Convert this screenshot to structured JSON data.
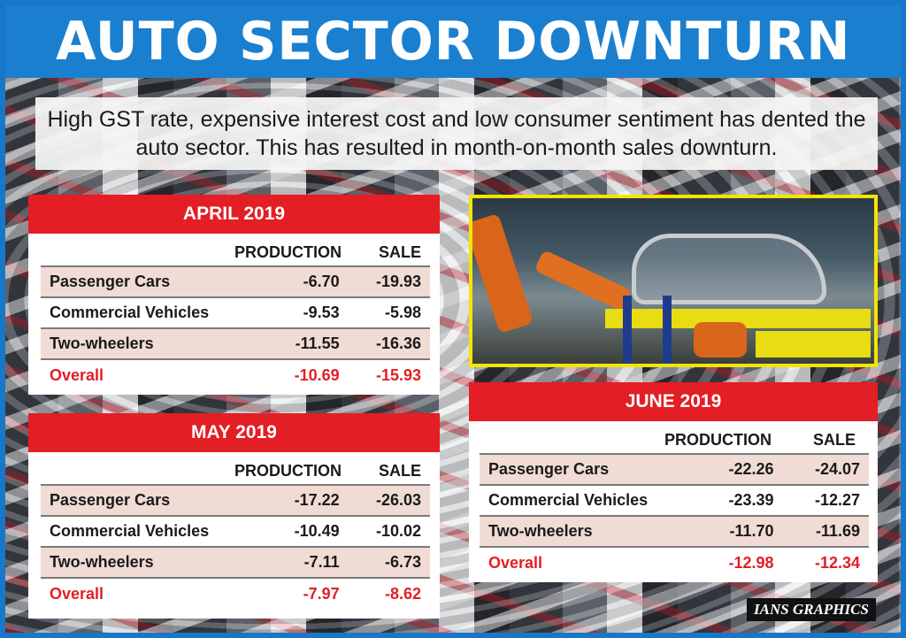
{
  "title": "AUTO SECTOR DOWNTURN",
  "intro": "High GST rate, expensive interest cost and low consumer sentiment has dented the auto sector. This has resulted in month-on-month sales downturn.",
  "columns": {
    "production": "PRODUCTION",
    "sale": "SALE"
  },
  "tables": {
    "april": {
      "heading": "APRIL 2019",
      "rows": [
        {
          "label": "Passenger Cars",
          "production": "-6.70",
          "sale": "-19.93"
        },
        {
          "label": "Commercial Vehicles",
          "production": "-9.53",
          "sale": "-5.98"
        },
        {
          "label": "Two-wheelers",
          "production": "-11.55",
          "sale": "-16.36"
        },
        {
          "label": "Overall",
          "production": "-10.69",
          "sale": "-15.93"
        }
      ]
    },
    "may": {
      "heading": "MAY 2019",
      "rows": [
        {
          "label": "Passenger Cars",
          "production": "-17.22",
          "sale": "-26.03"
        },
        {
          "label": "Commercial Vehicles",
          "production": "-10.49",
          "sale": "-10.02"
        },
        {
          "label": "Two-wheelers",
          "production": "-7.11",
          "sale": "-6.73"
        },
        {
          "label": "Overall",
          "production": "-7.97",
          "sale": "-8.62"
        }
      ]
    },
    "june": {
      "heading": "JUNE 2019",
      "rows": [
        {
          "label": "Passenger Cars",
          "production": "-22.26",
          "sale": "-24.07"
        },
        {
          "label": "Commercial Vehicles",
          "production": "-23.39",
          "sale": "-12.27"
        },
        {
          "label": "Two-wheelers",
          "production": "-11.70",
          "sale": "-11.69"
        },
        {
          "label": "Overall",
          "production": "-12.98",
          "sale": "-12.34"
        }
      ]
    }
  },
  "credit": "IANS GRAPHICS",
  "colors": {
    "frame": "#1877c9",
    "header_red": "#e31e24",
    "row_tint": "#f1dbd5",
    "overall_text": "#e31e24",
    "photo_border": "#f2e600"
  }
}
